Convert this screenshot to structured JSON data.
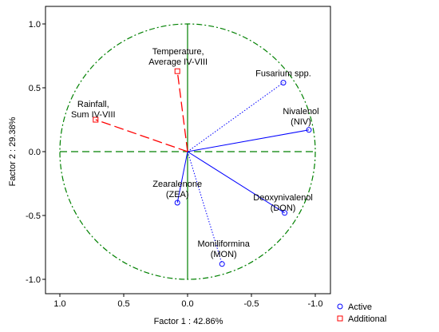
{
  "chart_data": {
    "type": "scatter",
    "title": "",
    "xlabel": "Factor 1 : 42.86%",
    "ylabel": "Factor 2 : 29.38%",
    "x_reversed": true,
    "xlim": [
      1.0,
      -1.0
    ],
    "ylim": [
      -1.0,
      1.0
    ],
    "xticks": [
      "1.0",
      "0.5",
      "0.0",
      "-0.5",
      "-1.0"
    ],
    "xtick_values": [
      1.0,
      0.5,
      0.0,
      -0.5,
      -1.0
    ],
    "yticks": [
      "1.0",
      "0.5",
      "0.0",
      "-0.5",
      "-1.0"
    ],
    "ytick_values": [
      1.0,
      0.5,
      0.0,
      -0.5,
      -1.0
    ],
    "unit_circle": true,
    "series": [
      {
        "name": "Active",
        "marker": "circle",
        "color": "#0000ff",
        "points": [
          {
            "label_lines": [
              "Fusarium spp."
            ],
            "x": -0.75,
            "y": 0.54,
            "line": "dotted"
          },
          {
            "label_lines": [
              "Nivalenol",
              "(NIV)"
            ],
            "x": -0.95,
            "y": 0.17,
            "line": "solid"
          },
          {
            "label_lines": [
              "Deoxynivalenol",
              "(DON)"
            ],
            "x": -0.76,
            "y": -0.48,
            "line": "solid"
          },
          {
            "label_lines": [
              "Moniliformina",
              "(MON)"
            ],
            "x": -0.27,
            "y": -0.88,
            "line": "dotted"
          },
          {
            "label_lines": [
              "Zearalenone",
              "(ZEA)"
            ],
            "x": 0.08,
            "y": -0.4,
            "line": "solid"
          }
        ]
      },
      {
        "name": "Additional",
        "marker": "square",
        "color": "#ff0000",
        "points": [
          {
            "label_lines": [
              "Temperature,",
              "Average IV-VIII"
            ],
            "x": 0.08,
            "y": 0.63,
            "line": "dashed"
          },
          {
            "label_lines": [
              "Rainfall,",
              "Sum IV-VIII"
            ],
            "x": 0.72,
            "y": 0.25,
            "line": "dashed"
          }
        ]
      }
    ],
    "legend": {
      "position": "bottom-right",
      "entries": [
        {
          "label": "Active",
          "marker": "circle",
          "color": "#0000ff"
        },
        {
          "label": "Additional",
          "marker": "square",
          "color": "#ff0000"
        }
      ]
    },
    "colors": {
      "circle": "#008000",
      "axes_lines": "#008000",
      "active": "#0000ff",
      "additional": "#ff0000"
    }
  }
}
